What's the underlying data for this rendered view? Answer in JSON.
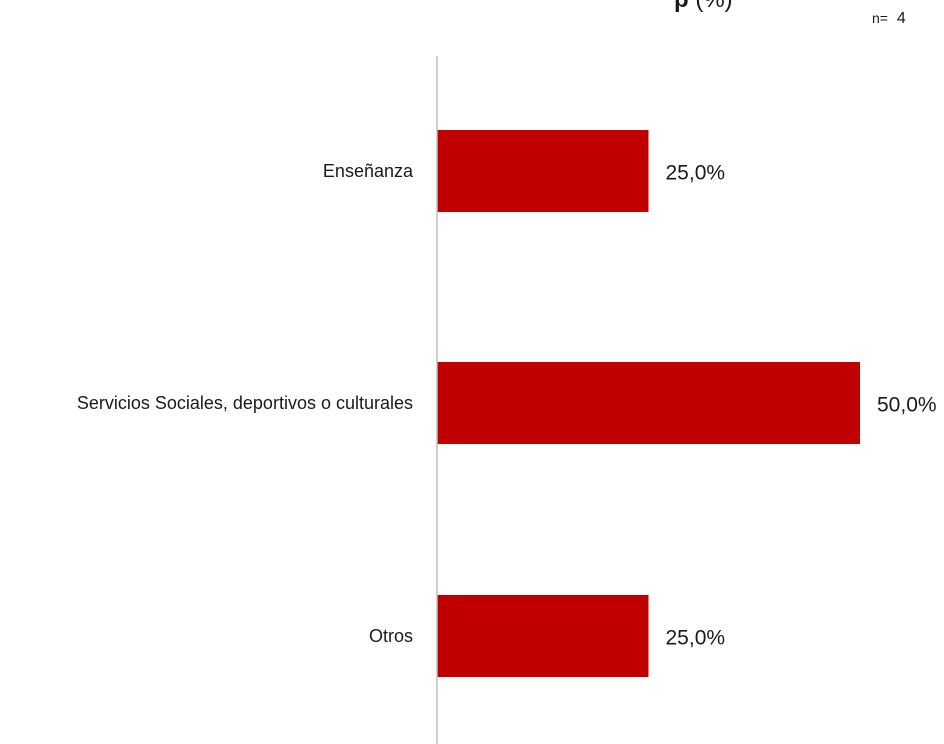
{
  "header": {
    "title_bold": "p",
    "title_rest": "(%)",
    "n_prefix": "n=",
    "n_value": "4"
  },
  "chart_data": {
    "type": "bar",
    "orientation": "horizontal",
    "categories": [
      "Enseñanza",
      "Servicios Sociales, deportivos o culturales",
      "Otros"
    ],
    "values": [
      25.0,
      50.0,
      25.0
    ],
    "value_labels": [
      "25,0%",
      "50,0%",
      "25,0%"
    ],
    "xlim": [
      0,
      50
    ],
    "bar_color": "#c00000",
    "axis_color": "#bfbfbf",
    "grid": false,
    "legend": "none"
  }
}
